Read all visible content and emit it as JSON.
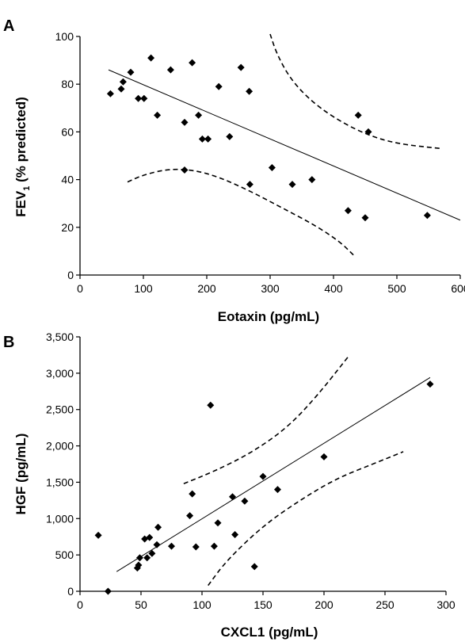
{
  "chart_data": [
    {
      "panel": "A",
      "type": "scatter",
      "xlabel": "Eotaxin (pg/mL)",
      "ylabel": {
        "pre": "FEV",
        "sub": "1",
        "post": " (% predicted)"
      },
      "xlim": [
        0,
        600
      ],
      "ylim": [
        0,
        100
      ],
      "xticks": [
        0,
        100,
        200,
        300,
        400,
        500,
        600
      ],
      "yticks": [
        0,
        20,
        40,
        60,
        80,
        100
      ],
      "xtick_labels": [
        "0",
        "100",
        "200",
        "300",
        "400",
        "500",
        "600"
      ],
      "ytick_labels": [
        "0",
        "20",
        "40",
        "60",
        "80",
        "100"
      ],
      "points": [
        [
          48,
          76
        ],
        [
          65,
          78
        ],
        [
          68,
          81
        ],
        [
          80,
          85
        ],
        [
          92,
          74
        ],
        [
          101,
          74
        ],
        [
          112,
          91
        ],
        [
          122,
          67
        ],
        [
          143,
          86
        ],
        [
          165,
          64
        ],
        [
          165,
          44
        ],
        [
          177,
          89
        ],
        [
          187,
          67
        ],
        [
          193,
          57
        ],
        [
          202,
          57
        ],
        [
          219,
          79
        ],
        [
          236,
          58
        ],
        [
          254,
          87
        ],
        [
          267,
          77
        ],
        [
          268,
          38
        ],
        [
          303,
          45
        ],
        [
          335,
          38
        ],
        [
          366,
          40
        ],
        [
          423,
          27
        ],
        [
          439,
          67
        ],
        [
          450,
          24
        ],
        [
          455,
          60
        ],
        [
          548,
          25
        ]
      ],
      "regression_line": [
        [
          45,
          86
        ],
        [
          600,
          23
        ]
      ],
      "confidence_upper": [
        [
          300,
          101
        ],
        [
          310,
          93
        ],
        [
          330,
          83
        ],
        [
          360,
          74
        ],
        [
          400,
          66
        ],
        [
          450,
          59
        ],
        [
          500,
          55
        ],
        [
          570,
          53
        ]
      ],
      "confidence_lower": [
        [
          75,
          39
        ],
        [
          100,
          42
        ],
        [
          140,
          44.5
        ],
        [
          180,
          44
        ],
        [
          220,
          41
        ],
        [
          270,
          35
        ],
        [
          320,
          28
        ],
        [
          370,
          21
        ],
        [
          410,
          14
        ],
        [
          433,
          8
        ]
      ],
      "grid": false,
      "legend": "none"
    },
    {
      "panel": "B",
      "type": "scatter",
      "xlabel": "CXCL1 (pg/mL)",
      "ylabel": "HGF (pg/mL)",
      "xlim": [
        0,
        300
      ],
      "ylim": [
        0,
        3500
      ],
      "xticks": [
        0,
        50,
        100,
        150,
        200,
        250,
        300
      ],
      "yticks": [
        0,
        500,
        1000,
        1500,
        2000,
        2500,
        3000,
        3500
      ],
      "xtick_labels": [
        "0",
        "50",
        "100",
        "150",
        "200",
        "250",
        "300"
      ],
      "ytick_labels": [
        "0",
        "500",
        "1,000",
        "1,500",
        "2,000",
        "2,500",
        "3,000",
        "3,500"
      ],
      "points": [
        [
          15,
          770
        ],
        [
          23,
          0
        ],
        [
          47,
          320
        ],
        [
          48,
          360
        ],
        [
          49,
          460
        ],
        [
          53,
          720
        ],
        [
          55,
          460
        ],
        [
          57,
          740
        ],
        [
          59,
          520
        ],
        [
          63,
          640
        ],
        [
          64,
          880
        ],
        [
          75,
          620
        ],
        [
          90,
          1040
        ],
        [
          92,
          1340
        ],
        [
          95,
          610
        ],
        [
          107,
          2560
        ],
        [
          110,
          620
        ],
        [
          113,
          940
        ],
        [
          125,
          1300
        ],
        [
          127,
          780
        ],
        [
          135,
          1240
        ],
        [
          143,
          340
        ],
        [
          150,
          1580
        ],
        [
          162,
          1400
        ],
        [
          200,
          1850
        ],
        [
          287,
          2850
        ]
      ],
      "regression_line": [
        [
          30,
          270
        ],
        [
          287,
          2940
        ]
      ],
      "confidence_upper": [
        [
          85,
          1480
        ],
        [
          110,
          1650
        ],
        [
          140,
          1900
        ],
        [
          170,
          2250
        ],
        [
          195,
          2700
        ],
        [
          220,
          3230
        ]
      ],
      "confidence_lower": [
        [
          105,
          80
        ],
        [
          120,
          420
        ],
        [
          150,
          900
        ],
        [
          180,
          1250
        ],
        [
          210,
          1550
        ],
        [
          240,
          1750
        ],
        [
          265,
          1920
        ]
      ],
      "grid": false,
      "legend": "none"
    }
  ]
}
